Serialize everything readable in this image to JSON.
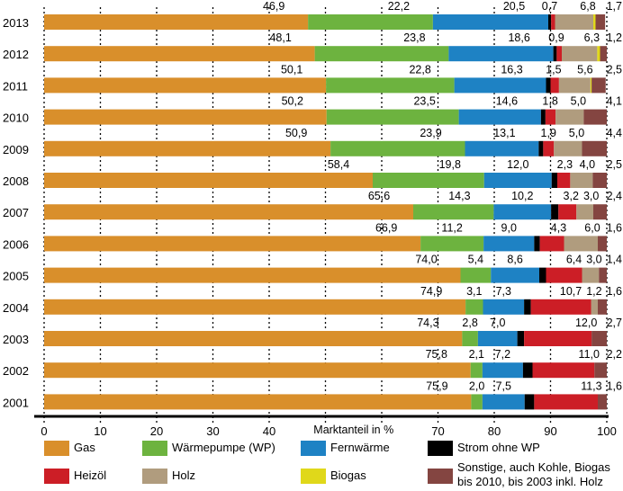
{
  "chart_data": {
    "type": "bar",
    "orientation": "horizontal",
    "stacked": true,
    "xlabel": "Marktanteil in %",
    "xlim": [
      0,
      100
    ],
    "xticks": [
      "0",
      "10",
      "20",
      "30",
      "40",
      "70",
      "80",
      "90",
      "100"
    ],
    "grid": "vertical dotted",
    "legend_placement": "bottom",
    "categories": [
      "2013",
      "2012",
      "2011",
      "2010",
      "2009",
      "2008",
      "2007",
      "2006",
      "2005",
      "2004",
      "2003",
      "2002",
      "2001"
    ],
    "series": [
      {
        "name": "Gas",
        "color": "#d98f2b",
        "values": [
          46.9,
          48.1,
          50.1,
          50.2,
          50.9,
          58.4,
          65.6,
          66.9,
          74.0,
          74.9,
          74.3,
          75.8,
          75.9
        ]
      },
      {
        "name": "Wärmepumpe (WP)",
        "color": "#6db33f",
        "values": [
          22.2,
          23.8,
          22.8,
          23.5,
          23.9,
          19.8,
          14.3,
          11.2,
          5.4,
          3.1,
          2.8,
          2.1,
          2.0
        ]
      },
      {
        "name": "Fernwärme",
        "color": "#1e82c4",
        "values": [
          20.5,
          18.6,
          16.3,
          14.6,
          13.1,
          12.0,
          10.2,
          9.0,
          8.6,
          7.3,
          7.0,
          7.2,
          7.5
        ]
      },
      {
        "name": "Strom ohne WP",
        "color": "#000000",
        "values": [
          0.5,
          0.6,
          0.8,
          0.8,
          0.8,
          1.0,
          1.3,
          1.0,
          1.2,
          1.2,
          1.2,
          1.7,
          1.7
        ]
      },
      {
        "name": "Heizöl",
        "color": "#cc1e26",
        "values": [
          0.7,
          0.9,
          1.5,
          1.8,
          1.9,
          2.3,
          3.2,
          4.3,
          6.4,
          10.7,
          12.0,
          11.0,
          11.3
        ]
      },
      {
        "name": "Holz",
        "color": "#b09c7e",
        "values": [
          6.8,
          6.3,
          5.6,
          5.0,
          5.0,
          4.0,
          3.0,
          6.0,
          3.0,
          1.2,
          0,
          0,
          0
        ]
      },
      {
        "name": "Biogas",
        "color": "#e0d81a",
        "values": [
          0.4,
          0.5,
          0.2,
          0,
          0,
          0,
          0,
          0,
          0,
          0,
          0,
          0,
          0
        ]
      },
      {
        "name": "Sonstige, auch Kohle, Biogas bis 2010, bis 2003 inkl. Holz",
        "color": "#844541",
        "values": [
          1.7,
          1.2,
          2.5,
          4.1,
          4.4,
          2.5,
          2.4,
          1.6,
          1.4,
          1.6,
          2.7,
          2.2,
          1.6
        ]
      }
    ],
    "data_labels": [
      [
        "46,9",
        "22,2",
        "20,5",
        "",
        "0,7",
        "6,8",
        "",
        "1,7"
      ],
      [
        "48,1",
        "23,8",
        "18,6",
        "",
        "0,9",
        "6,3",
        "",
        "1,2"
      ],
      [
        "50,1",
        "22,8",
        "16,3",
        "",
        "1,5",
        "5,6",
        "",
        "2,5"
      ],
      [
        "50,2",
        "23,5",
        "14,6",
        "",
        "1,8",
        "5,0",
        "",
        "4,1"
      ],
      [
        "50,9",
        "23,9",
        "13,1",
        "",
        "1,9",
        "5,0",
        "",
        "4,4"
      ],
      [
        "58,4",
        "19,8",
        "12,0",
        "",
        "2,3",
        "4,0",
        "",
        "2,5"
      ],
      [
        "65,6",
        "14,3",
        "10,2",
        "",
        "3,2",
        "3,0",
        "",
        "2,4"
      ],
      [
        "66,9",
        "11,2",
        "9,0",
        "",
        "4,3",
        "6,0",
        "",
        "1,6"
      ],
      [
        "74,0",
        "5,4",
        "8,6",
        "",
        "6,4",
        "3,0",
        "",
        "1,4"
      ],
      [
        "74,9",
        "3,1",
        "7,3",
        "",
        "10,7",
        "1,2",
        "",
        "1,6"
      ],
      [
        "74,3",
        "2,8",
        "7,0",
        "",
        "12,0",
        "",
        "",
        "2,7"
      ],
      [
        "75,8",
        "2,1",
        "7,2",
        "",
        "11,0",
        "",
        "",
        "2,2"
      ],
      [
        "75,9",
        "2,0",
        "7,5",
        "",
        "11,3",
        "",
        "",
        "1,6"
      ]
    ]
  },
  "legend": {
    "items": [
      "Gas",
      "Wärmepumpe (WP)",
      "Fernwärme",
      "Strom ohne WP",
      "Heizöl",
      "Holz",
      "Biogas"
    ],
    "last_line1": "Sonstige, auch Kohle, Biogas",
    "last_line2": "bis 2010, bis 2003 inkl. Holz"
  }
}
